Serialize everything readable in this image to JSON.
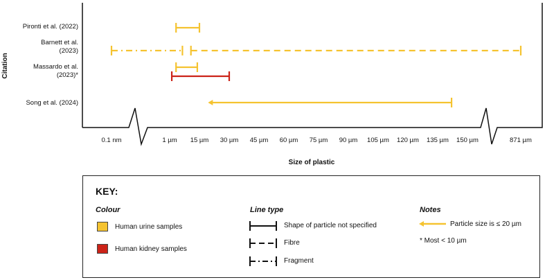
{
  "colors": {
    "urine": "#f5c330",
    "kidney": "#cc2318",
    "axis": "#111111"
  },
  "chart_data": {
    "type": "range",
    "xlabel": "Size of plastic",
    "ylabel": "Citation",
    "x_ticks": [
      "0.1 nm",
      "1 µm",
      "15 µm",
      "30 µm",
      "45 µm",
      "60 µm",
      "75 µm",
      "90 µm",
      "105 µm",
      "120 µm",
      "135 µm",
      "150 µm",
      "871 µm"
    ],
    "axis_breaks": [
      "between 0.1 nm and 1 µm",
      "between 150 µm and 871 µm"
    ],
    "categories": [
      "Pironti et al. (2022)",
      "Barnett et al. (2023)",
      "Massardo et al. (2023)*",
      "Song et al. (2024)"
    ],
    "series": [
      {
        "citation": "Pironti et al. (2022)",
        "sample": "Human urine samples",
        "line_type": "Shape of particle not specified",
        "start": "4 µm",
        "end": "15 µm"
      },
      {
        "citation": "Barnett et al. (2023)",
        "sample": "Human urine samples",
        "line_type": "Fragment",
        "start": "0.1 nm",
        "end": "7 µm"
      },
      {
        "citation": "Barnett et al. (2023)",
        "sample": "Human urine samples",
        "line_type": "Fibre",
        "start": "11 µm",
        "end": "871 µm"
      },
      {
        "citation": "Massardo et al. (2023)*",
        "sample": "Human urine samples",
        "line_type": "Shape of particle not specified",
        "start": "4 µm",
        "end": "14 µm"
      },
      {
        "citation": "Massardo et al. (2023)*",
        "sample": "Human kidney samples",
        "line_type": "Shape of particle not specified",
        "start": "2 µm",
        "end": "30 µm"
      },
      {
        "citation": "Song et al. (2024)",
        "sample": "Human urine samples",
        "line_type": "Shape of particle not specified",
        "start": "≤ 20 µm",
        "end": "142 µm",
        "note": "Particle size is ≤ 20 µm"
      }
    ]
  },
  "key": {
    "title": "KEY:",
    "colour_heading": "Colour",
    "colour_items": [
      "Human urine samples",
      "Human kidney samples"
    ],
    "line_heading": "Line type",
    "line_items": [
      "Shape of particle not specified",
      "Fibre",
      "Fragment"
    ],
    "notes_heading": "Notes",
    "note_arrow": "Particle size is ≤ 20 µm",
    "note_star": "* Most < 10 µm"
  }
}
